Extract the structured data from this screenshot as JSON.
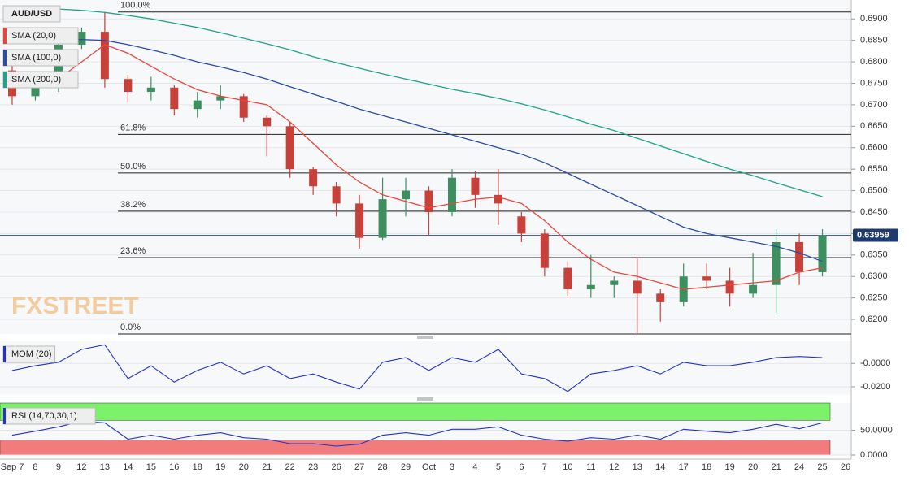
{
  "chart_data": [
    {
      "type": "candlestick",
      "title": "AUD/USD",
      "watermark": "FXSTREET",
      "categories": [
        "Sep 7",
        "8",
        "9",
        "12",
        "13",
        "14",
        "15",
        "16",
        "18",
        "19",
        "20",
        "21",
        "22",
        "23",
        "26",
        "27",
        "28",
        "29",
        "Oct",
        "3",
        "4",
        "5",
        "6",
        "7",
        "10",
        "11",
        "12",
        "13",
        "14",
        "17",
        "18",
        "19",
        "20",
        "21",
        "24",
        "25",
        "26"
      ],
      "ohlc": {
        "open": [
          0.678,
          0.672,
          0.674,
          0.684,
          0.687,
          0.676,
          0.673,
          0.674,
          0.669,
          0.671,
          0.672,
          0.667,
          0.665,
          0.655,
          0.651,
          0.647,
          0.639,
          0.648,
          0.65,
          0.645,
          0.653,
          0.649,
          0.644,
          0.64,
          0.632,
          0.627,
          0.628,
          0.629,
          0.626,
          0.624,
          0.63,
          0.629,
          0.626,
          0.628,
          0.638,
          0.631,
          null
        ],
        "high": [
          0.68,
          0.676,
          0.686,
          0.688,
          0.6916,
          0.677,
          0.6765,
          0.6745,
          0.673,
          0.6745,
          0.6725,
          0.6675,
          0.666,
          0.6555,
          0.652,
          0.649,
          0.653,
          0.653,
          0.651,
          0.655,
          0.6545,
          0.655,
          0.645,
          0.641,
          0.6335,
          0.635,
          0.63,
          0.6345,
          0.627,
          0.633,
          0.633,
          0.632,
          0.6355,
          0.641,
          0.64,
          0.641,
          null
        ],
        "low": [
          0.67,
          0.671,
          0.673,
          0.683,
          0.674,
          0.6705,
          0.671,
          0.6675,
          0.667,
          0.669,
          0.666,
          0.658,
          0.653,
          0.649,
          0.644,
          0.6365,
          0.6385,
          0.644,
          0.6395,
          0.644,
          0.646,
          0.642,
          0.638,
          0.63,
          0.6255,
          0.625,
          0.625,
          0.6168,
          0.6195,
          0.623,
          0.627,
          0.623,
          0.625,
          0.621,
          0.628,
          0.63,
          null
        ],
        "close": [
          0.672,
          0.674,
          0.684,
          0.687,
          0.676,
          0.673,
          0.674,
          0.669,
          0.671,
          0.672,
          0.667,
          0.665,
          0.655,
          0.651,
          0.647,
          0.639,
          0.648,
          0.65,
          0.645,
          0.653,
          0.649,
          0.647,
          0.64,
          0.632,
          0.627,
          0.628,
          0.629,
          0.626,
          0.624,
          0.63,
          0.629,
          0.626,
          0.628,
          0.638,
          0.631,
          0.6396,
          null
        ]
      },
      "up_color": "#3d8f5f",
      "down_color": "#c8403a",
      "series": [
        {
          "name": "SMA (20,0)",
          "color": "#e8463c",
          "values": [
            0.676,
            0.675,
            0.676,
            0.68,
            0.684,
            0.682,
            0.679,
            0.676,
            0.6735,
            0.672,
            0.671,
            0.67,
            0.666,
            0.661,
            0.656,
            0.652,
            0.649,
            0.6475,
            0.646,
            0.647,
            0.648,
            0.6485,
            0.647,
            0.643,
            0.638,
            0.634,
            0.631,
            0.63,
            0.6285,
            0.627,
            0.6275,
            0.628,
            0.6285,
            0.629,
            0.631,
            0.632,
            null
          ]
        },
        {
          "name": "SMA (100,0)",
          "color": "#2c4ca8",
          "values": [
            0.6858,
            0.6856,
            0.6854,
            0.6852,
            0.685,
            0.684,
            0.6828,
            0.6815,
            0.68,
            0.6788,
            0.6775,
            0.676,
            0.6742,
            0.6725,
            0.6708,
            0.669,
            0.6675,
            0.666,
            0.6645,
            0.663,
            0.6615,
            0.66,
            0.6585,
            0.6565,
            0.654,
            0.6515,
            0.649,
            0.6465,
            0.644,
            0.6415,
            0.64,
            0.639,
            0.638,
            0.637,
            0.6355,
            0.6335,
            null
          ]
        },
        {
          "name": "SMA (200,0)",
          "color": "#1fa38a",
          "values": [
            0.6928,
            0.6926,
            0.6923,
            0.692,
            0.6915,
            0.6908,
            0.69,
            0.689,
            0.688,
            0.6868,
            0.6855,
            0.6842,
            0.6828,
            0.6812,
            0.6798,
            0.6785,
            0.6772,
            0.676,
            0.6748,
            0.6736,
            0.6726,
            0.6715,
            0.6702,
            0.6688,
            0.6672,
            0.6655,
            0.664,
            0.6622,
            0.6604,
            0.6586,
            0.6568,
            0.655,
            0.6535,
            0.6518,
            0.6502,
            0.6486,
            null
          ]
        }
      ],
      "levels": [
        {
          "label": "100.0%",
          "value": 0.6916
        },
        {
          "label": "61.8%",
          "value": 0.6631
        },
        {
          "label": "50.0%",
          "value": 0.6541
        },
        {
          "label": "38.2%",
          "value": 0.6452
        },
        {
          "label": "23.6%",
          "value": 0.6344
        },
        {
          "label": "0.0%",
          "value": 0.6166
        }
      ],
      "last_price": 0.63959,
      "last_price_color": "#1e3a6e",
      "ylim": [
        0.6166,
        0.6944
      ],
      "yticks": [
        {
          "value": 0.62,
          "label": "0.6200"
        },
        {
          "value": 0.625,
          "label": "0.6250"
        },
        {
          "value": 0.63,
          "label": "0.6300"
        },
        {
          "value": 0.635,
          "label": "0.6350"
        },
        {
          "value": 0.64,
          "label": "0.6400"
        },
        {
          "value": 0.645,
          "label": "0.6450"
        },
        {
          "value": 0.65,
          "label": "0.6500"
        },
        {
          "value": 0.655,
          "label": "0.6550"
        },
        {
          "value": 0.66,
          "label": "0.6600"
        },
        {
          "value": 0.665,
          "label": "0.6650"
        },
        {
          "value": 0.67,
          "label": "0.6700"
        },
        {
          "value": 0.675,
          "label": "0.6750"
        },
        {
          "value": 0.68,
          "label": "0.6800"
        },
        {
          "value": 0.685,
          "label": "0.6850"
        },
        {
          "value": 0.69,
          "label": "0.6900"
        }
      ]
    },
    {
      "type": "line",
      "title": "MOM (20)",
      "color": "#2233cc",
      "values": [
        -0.006,
        -0.002,
        0.001,
        0.012,
        0.016,
        -0.013,
        -0.002,
        -0.016,
        -0.006,
        0.001,
        -0.009,
        -0.002,
        -0.013,
        -0.009,
        -0.016,
        -0.022,
        0.001,
        0.005,
        -0.006,
        0.005,
        0.001,
        0.012,
        -0.009,
        -0.013,
        -0.024,
        -0.009,
        -0.006,
        -0.002,
        -0.009,
        0.001,
        -0.002,
        -0.002,
        0.001,
        0.005,
        0.006,
        0.005,
        null
      ],
      "ylim": [
        -0.027,
        0.019
      ],
      "yticks": [
        {
          "value": 0,
          "label": "-0.0000"
        },
        {
          "value": -0.02,
          "label": "-0.0200"
        }
      ]
    },
    {
      "type": "line",
      "title": "RSI (14,70,30,1)",
      "color": "#2233cc",
      "values": [
        40,
        48,
        57,
        68,
        65,
        32,
        40,
        32,
        40,
        45,
        35,
        32,
        23,
        23,
        18,
        22,
        40,
        45,
        40,
        52,
        52,
        57,
        40,
        32,
        28,
        35,
        32,
        40,
        32,
        52,
        48,
        45,
        52,
        62,
        53,
        65,
        null
      ],
      "bands": [
        {
          "from": 70,
          "to": 105,
          "color": "#7cf26a"
        },
        {
          "from": 0,
          "to": 30,
          "color": "#f27c7c"
        }
      ],
      "ylim": [
        0,
        105
      ],
      "yticks": [
        {
          "value": 50,
          "label": "50.0000"
        },
        {
          "value": 0,
          "label": "0.0000"
        }
      ]
    }
  ]
}
